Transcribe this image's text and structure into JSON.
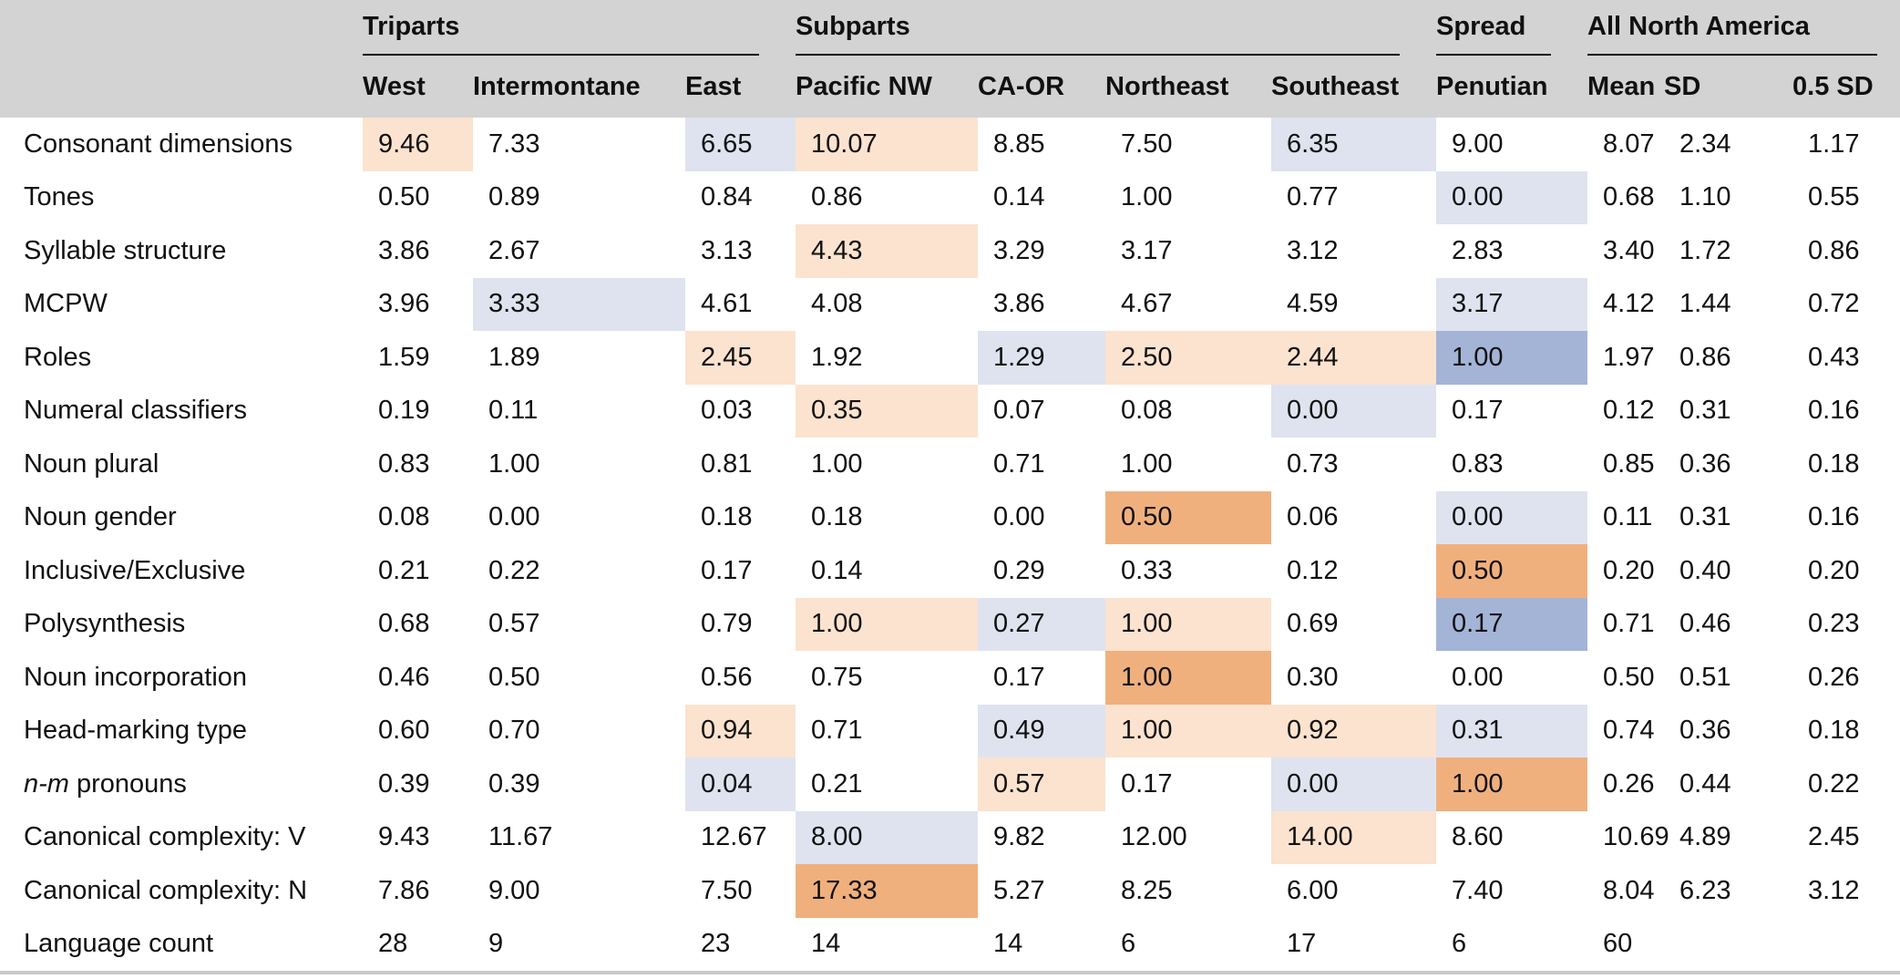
{
  "header": {
    "groups": [
      {
        "label": "Triparts",
        "columns": [
          "West",
          "Intermontane",
          "East"
        ]
      },
      {
        "label": "Subparts",
        "columns": [
          "Pacific NW",
          "CA-OR",
          "Northeast",
          "Southeast"
        ]
      },
      {
        "label": "Spread",
        "columns": [
          "Penutian"
        ]
      },
      {
        "label": "All North America",
        "columns": [
          "Mean",
          "SD",
          "0.5 SD"
        ]
      }
    ]
  },
  "table": {
    "rows": [
      {
        "label": "Consonant dimensions",
        "values": [
          "9.46",
          "7.33",
          "6.65",
          "10.07",
          "8.85",
          "7.50",
          "6.35",
          "9.00",
          "8.07",
          "2.34",
          "1.17"
        ]
      },
      {
        "label": "Tones",
        "values": [
          "0.50",
          "0.89",
          "0.84",
          "0.86",
          "0.14",
          "1.00",
          "0.77",
          "0.00",
          "0.68",
          "1.10",
          "0.55"
        ]
      },
      {
        "label": "Syllable structure",
        "values": [
          "3.86",
          "2.67",
          "3.13",
          "4.43",
          "3.29",
          "3.17",
          "3.12",
          "2.83",
          "3.40",
          "1.72",
          "0.86"
        ]
      },
      {
        "label": "MCPW",
        "values": [
          "3.96",
          "3.33",
          "4.61",
          "4.08",
          "3.86",
          "4.67",
          "4.59",
          "3.17",
          "4.12",
          "1.44",
          "0.72"
        ]
      },
      {
        "label": "Roles",
        "values": [
          "1.59",
          "1.89",
          "2.45",
          "1.92",
          "1.29",
          "2.50",
          "2.44",
          "1.00",
          "1.97",
          "0.86",
          "0.43"
        ]
      },
      {
        "label": "Numeral classifiers",
        "values": [
          "0.19",
          "0.11",
          "0.03",
          "0.35",
          "0.07",
          "0.08",
          "0.00",
          "0.17",
          "0.12",
          "0.31",
          "0.16"
        ]
      },
      {
        "label": "Noun plural",
        "values": [
          "0.83",
          "1.00",
          "0.81",
          "1.00",
          "0.71",
          "1.00",
          "0.73",
          "0.83",
          "0.85",
          "0.36",
          "0.18"
        ]
      },
      {
        "label": "Noun gender",
        "values": [
          "0.08",
          "0.00",
          "0.18",
          "0.18",
          "0.00",
          "0.50",
          "0.06",
          "0.00",
          "0.11",
          "0.31",
          "0.16"
        ]
      },
      {
        "label": "Inclusive/Exclusive",
        "values": [
          "0.21",
          "0.22",
          "0.17",
          "0.14",
          "0.29",
          "0.33",
          "0.12",
          "0.50",
          "0.20",
          "0.40",
          "0.20"
        ]
      },
      {
        "label": "Polysynthesis",
        "values": [
          "0.68",
          "0.57",
          "0.79",
          "1.00",
          "0.27",
          "1.00",
          "0.69",
          "0.17",
          "0.71",
          "0.46",
          "0.23"
        ]
      },
      {
        "label": "Noun incorporation",
        "values": [
          "0.46",
          "0.50",
          "0.56",
          "0.75",
          "0.17",
          "1.00",
          "0.30",
          "0.00",
          "0.50",
          "0.51",
          "0.26"
        ]
      },
      {
        "label": "Head-marking type",
        "values": [
          "0.60",
          "0.70",
          "0.94",
          "0.71",
          "0.49",
          "1.00",
          "0.92",
          "0.31",
          "0.74",
          "0.36",
          "0.18"
        ]
      },
      {
        "label": [
          {
            "text": "n-m",
            "italic": true
          },
          {
            "text": "pronouns"
          }
        ],
        "values": [
          "0.39",
          "0.39",
          "0.04",
          "0.21",
          "0.57",
          "0.17",
          "0.00",
          "1.00",
          "0.26",
          "0.44",
          "0.22"
        ]
      },
      {
        "label": "Canonical complexity: V",
        "values": [
          "9.43",
          "11.67",
          "12.67",
          "8.00",
          "9.82",
          "12.00",
          "14.00",
          "8.60",
          "10.69",
          "4.89",
          "2.45"
        ]
      },
      {
        "label": "Canonical complexity: N",
        "values": [
          "7.86",
          "9.00",
          "7.50",
          "17.33",
          "5.27",
          "8.25",
          "6.00",
          "7.40",
          "8.04",
          "6.23",
          "3.12"
        ]
      },
      {
        "label": "Language count",
        "values": [
          "28",
          "9",
          "23",
          "14",
          "14",
          "6",
          "17",
          "6",
          "60"
        ]
      }
    ]
  }
}
